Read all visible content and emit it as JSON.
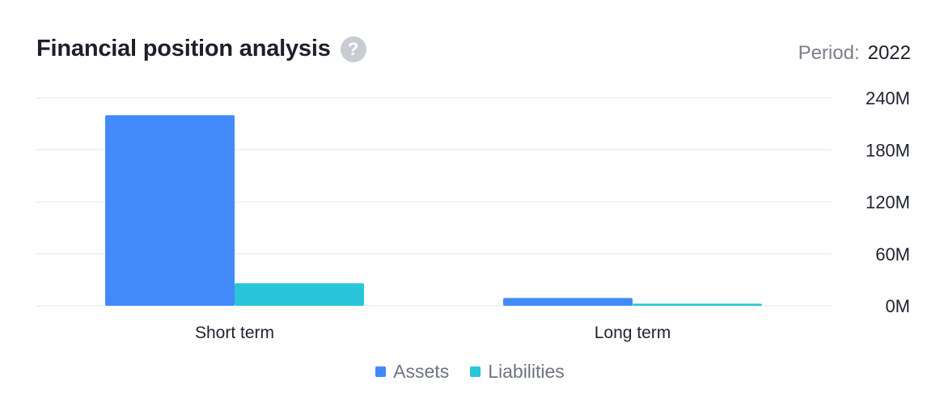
{
  "header": {
    "title": "Financial position analysis",
    "help_icon": "question-mark-icon",
    "period_label": "Period:",
    "period_value": "2022"
  },
  "colors": {
    "assets": "#4289fb",
    "liabilities": "#29c6da",
    "grid": "#eceef1",
    "tick_text": "#1f2330",
    "help_icon_bg": "#c9ccd3"
  },
  "chart_data": {
    "type": "bar",
    "title": "Financial position analysis",
    "categories": [
      "Short term",
      "Long term"
    ],
    "series": [
      {
        "name": "Assets",
        "values": [
          220,
          9
        ]
      },
      {
        "name": "Liabilities",
        "values": [
          26,
          2.5
        ]
      }
    ],
    "yaxis": {
      "position": "right",
      "ticks": [
        0,
        60,
        120,
        180,
        240
      ],
      "tick_labels": [
        "0M",
        "60M",
        "120M",
        "180M",
        "240M"
      ],
      "unit": "M"
    },
    "ylim": [
      0,
      240
    ],
    "grid": true,
    "legend": "bottom-center"
  }
}
